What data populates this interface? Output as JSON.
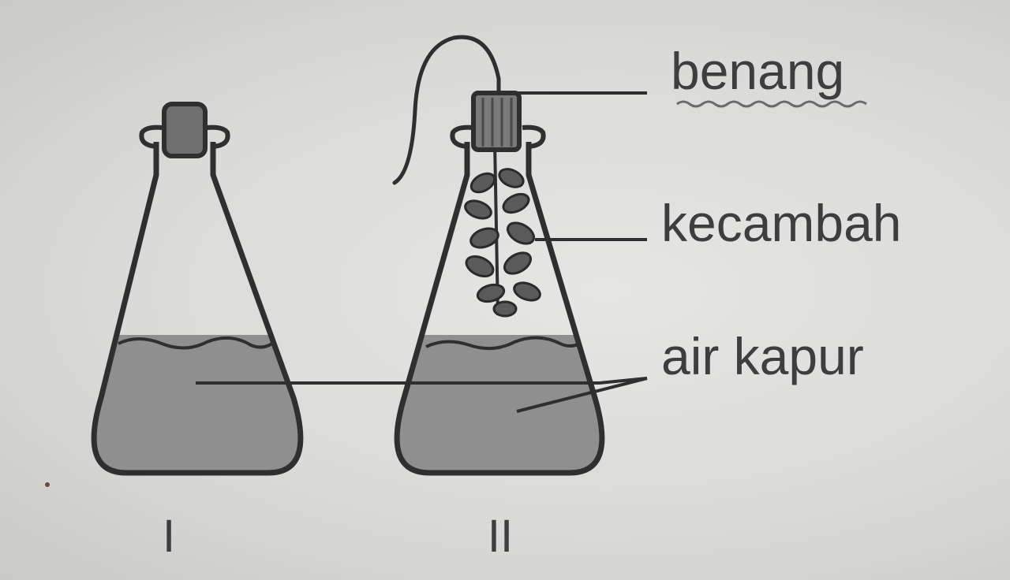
{
  "labels": {
    "thread": "benang",
    "sprouts": "kecambah",
    "limewater": "air kapur"
  },
  "flasks": [
    {
      "numeral": "I"
    },
    {
      "numeral": "II"
    }
  ],
  "colors": {
    "outline": "#2f2f2f",
    "liquid": "#8f8f8f",
    "stopper": "#6f6f6f",
    "text": "#3e3e3e",
    "background": "#dcdcda"
  }
}
